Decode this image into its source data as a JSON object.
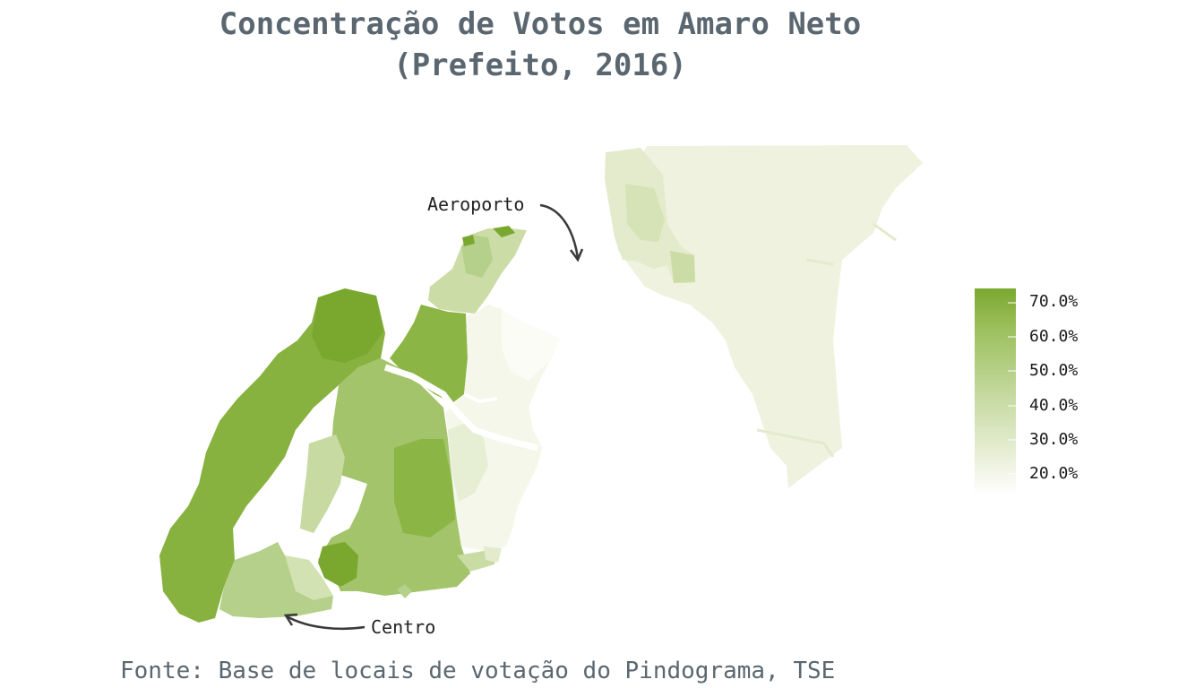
{
  "title": {
    "line1": "Concentração de Votos em Amaro Neto",
    "line2": "(Prefeito, 2016)"
  },
  "caption": "Fonte: Base de locais de votação do Pindograma, TSE",
  "annotations": {
    "airport": "Aeroporto",
    "center": "Centro"
  },
  "legend": {
    "labels": [
      "70.0%",
      "60.0%",
      "50.0%",
      "40.0%",
      "30.0%",
      "20.0%"
    ],
    "color_low": "#ffffff",
    "color_high": "#7aa82f"
  },
  "colors": {
    "title": "#5b6770",
    "dark_green": "#7aa82f",
    "mid_green": "#a3c46a",
    "light_green": "#c9dca4",
    "pale": "#eef2df",
    "lightest": "#f7f9f1",
    "arrow": "#3a3a3a"
  }
}
